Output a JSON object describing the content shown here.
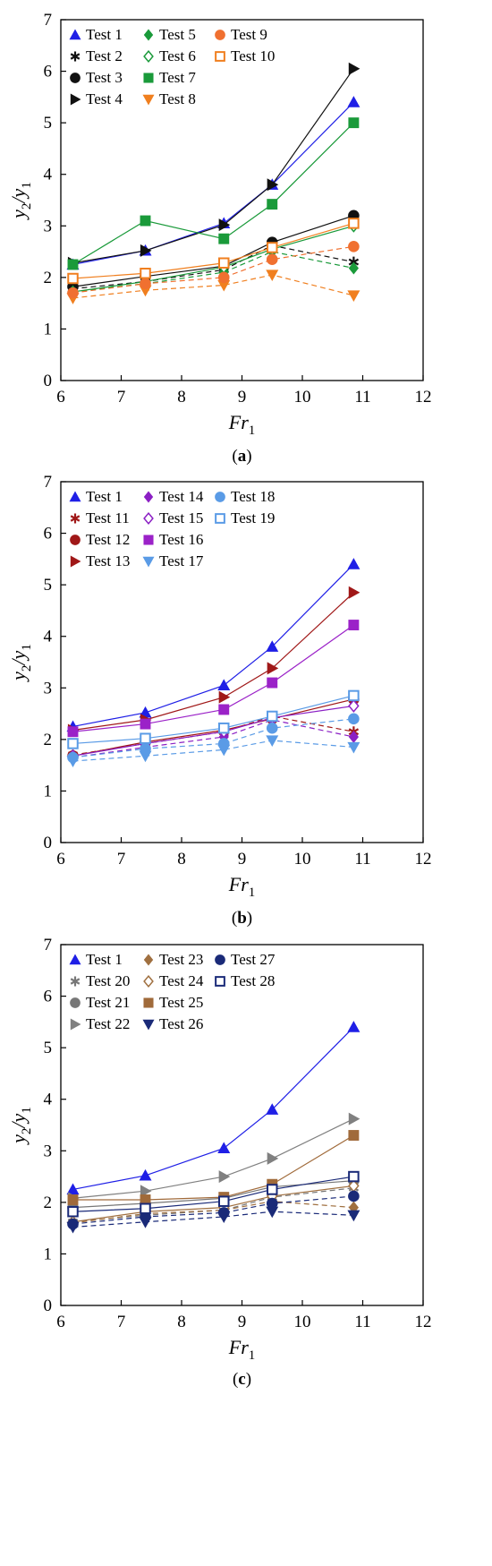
{
  "charts": [
    {
      "caption": "(a)",
      "xlabel": "Fr",
      "xlabel_sub": "1",
      "ylabel_a": "y",
      "ylabel_a_sub": "2",
      "ylabel_b": "/y",
      "ylabel_b_sub": "1",
      "xlim": [
        6,
        12
      ],
      "ylim": [
        0,
        7
      ],
      "xticks": [
        "6",
        "7",
        "8",
        "9",
        "10",
        "11",
        "12"
      ],
      "yticks": [
        "0",
        "1",
        "2",
        "3",
        "4",
        "5",
        "6",
        "7"
      ],
      "legend_placement": "top-left",
      "legend_columns": 3
    },
    {
      "caption": "(b)",
      "xlabel": "Fr",
      "xlabel_sub": "1",
      "ylabel_a": "y",
      "ylabel_a_sub": "2",
      "ylabel_b": "/y",
      "ylabel_b_sub": "1",
      "xlim": [
        6,
        12
      ],
      "ylim": [
        0,
        7
      ],
      "xticks": [
        "6",
        "7",
        "8",
        "9",
        "10",
        "11",
        "12"
      ],
      "yticks": [
        "0",
        "1",
        "2",
        "3",
        "4",
        "5",
        "6",
        "7"
      ],
      "legend_placement": "top-left",
      "legend_columns": 3
    },
    {
      "caption": "(c)",
      "xlabel": "Fr",
      "xlabel_sub": "1",
      "ylabel_a": "y",
      "ylabel_a_sub": "2",
      "ylabel_b": "/y",
      "ylabel_b_sub": "1",
      "xlim": [
        6,
        12
      ],
      "ylim": [
        0,
        7
      ],
      "xticks": [
        "6",
        "7",
        "8",
        "9",
        "10",
        "11",
        "12"
      ],
      "yticks": [
        "0",
        "1",
        "2",
        "3",
        "4",
        "5",
        "6",
        "7"
      ],
      "legend_placement": "top-left",
      "legend_columns": 3
    }
  ],
  "chart_data": [
    {
      "type": "line",
      "x": [
        6.2,
        7.4,
        8.7,
        9.5,
        10.85
      ],
      "series": [
        {
          "name": "Test 1",
          "values": [
            2.25,
            2.52,
            3.05,
            3.8,
            5.4
          ],
          "color": "#1f1fe6",
          "marker": "triangle-up",
          "dash": false
        },
        {
          "name": "Test 2",
          "values": [
            1.78,
            1.92,
            2.15,
            2.62,
            2.3
          ],
          "color": "#111111",
          "marker": "star",
          "dash": true
        },
        {
          "name": "Test 3",
          "values": [
            1.82,
            2.02,
            2.22,
            2.68,
            3.2
          ],
          "color": "#111111",
          "marker": "circle",
          "dash": false
        },
        {
          "name": "Test 4",
          "values": [
            2.28,
            2.52,
            3.02,
            3.8,
            6.05
          ],
          "color": "#111111",
          "marker": "triangle-right",
          "dash": false
        },
        {
          "name": "Test 5",
          "values": [
            1.72,
            1.88,
            2.1,
            2.5,
            2.18
          ],
          "color": "#1a9a3a",
          "marker": "diamond",
          "dash": true
        },
        {
          "name": "Test 6",
          "values": [
            1.72,
            1.92,
            2.2,
            2.55,
            3.0
          ],
          "color": "#1a9a3a",
          "marker": "diamond-open",
          "dash": false
        },
        {
          "name": "Test 7",
          "values": [
            2.25,
            3.1,
            2.75,
            3.42,
            5.0
          ],
          "color": "#1a9a3a",
          "marker": "square",
          "dash": false
        },
        {
          "name": "Test 8",
          "values": [
            1.6,
            1.75,
            1.85,
            2.05,
            1.65
          ],
          "color": "#f07f1f",
          "marker": "triangle-down",
          "dash": true
        },
        {
          "name": "Test 9",
          "values": [
            1.7,
            1.88,
            2.0,
            2.35,
            2.6
          ],
          "color": "#f07030",
          "marker": "circle",
          "dash": true
        },
        {
          "name": "Test 10",
          "values": [
            1.98,
            2.08,
            2.28,
            2.58,
            3.05
          ],
          "color": "#f07f1f",
          "marker": "square-open",
          "dash": false
        }
      ]
    },
    {
      "type": "line",
      "x": [
        6.2,
        7.4,
        8.7,
        9.5,
        10.85
      ],
      "series": [
        {
          "name": "Test 1",
          "values": [
            2.25,
            2.52,
            3.05,
            3.8,
            5.4
          ],
          "color": "#1f1fe6",
          "marker": "triangle-up",
          "dash": false
        },
        {
          "name": "Test 11",
          "values": [
            1.7,
            1.92,
            2.15,
            2.45,
            2.15
          ],
          "color": "#a01818",
          "marker": "star",
          "dash": true
        },
        {
          "name": "Test 12",
          "values": [
            1.68,
            1.95,
            2.18,
            2.4,
            2.78
          ],
          "color": "#a01818",
          "marker": "circle",
          "dash": false
        },
        {
          "name": "Test 13",
          "values": [
            2.18,
            2.38,
            2.82,
            3.38,
            4.85
          ],
          "color": "#a01818",
          "marker": "triangle-right",
          "dash": false
        },
        {
          "name": "Test 14",
          "values": [
            1.65,
            1.85,
            2.05,
            2.38,
            2.05
          ],
          "color": "#8b1fc4",
          "marker": "diamond",
          "dash": true
        },
        {
          "name": "Test 15",
          "values": [
            1.68,
            1.92,
            2.15,
            2.42,
            2.65
          ],
          "color": "#8b1fc4",
          "marker": "diamond-open",
          "dash": false
        },
        {
          "name": "Test 16",
          "values": [
            2.15,
            2.3,
            2.58,
            3.1,
            4.22
          ],
          "color": "#9b22c8",
          "marker": "square",
          "dash": false
        },
        {
          "name": "Test 17",
          "values": [
            1.58,
            1.68,
            1.8,
            1.98,
            1.85
          ],
          "color": "#5a9be6",
          "marker": "triangle-down",
          "dash": true
        },
        {
          "name": "Test 18",
          "values": [
            1.65,
            1.82,
            1.92,
            2.22,
            2.4
          ],
          "color": "#5a9be6",
          "marker": "circle",
          "dash": true
        },
        {
          "name": "Test 19",
          "values": [
            1.92,
            2.02,
            2.22,
            2.45,
            2.85
          ],
          "color": "#5a9be6",
          "marker": "square-open",
          "dash": false
        }
      ]
    },
    {
      "type": "line",
      "x": [
        6.2,
        7.4,
        8.7,
        9.5,
        10.85
      ],
      "series": [
        {
          "name": "Test 1",
          "values": [
            2.25,
            2.52,
            3.05,
            3.8,
            5.4
          ],
          "color": "#1f1fe6",
          "marker": "triangle-up",
          "dash": false
        },
        {
          "name": "Test 20",
          "values": [
            1.62,
            1.75,
            1.85,
            2.1,
            2.28
          ],
          "color": "#777777",
          "marker": "star",
          "dash": true
        },
        {
          "name": "Test 21",
          "values": [
            1.9,
            1.98,
            2.08,
            2.3,
            2.42
          ],
          "color": "#777777",
          "marker": "circle",
          "dash": false
        },
        {
          "name": "Test 22",
          "values": [
            2.08,
            2.22,
            2.5,
            2.85,
            3.62
          ],
          "color": "#808080",
          "marker": "triangle-right",
          "dash": false
        },
        {
          "name": "Test 23",
          "values": [
            1.6,
            1.78,
            1.85,
            2.02,
            1.9
          ],
          "color": "#a07040",
          "marker": "diamond",
          "dash": true
        },
        {
          "name": "Test 24",
          "values": [
            1.62,
            1.82,
            1.9,
            2.12,
            2.32
          ],
          "color": "#a07040",
          "marker": "diamond-open",
          "dash": false
        },
        {
          "name": "Test 25",
          "values": [
            2.05,
            2.05,
            2.1,
            2.35,
            3.3
          ],
          "color": "#a06a3a",
          "marker": "square",
          "dash": false
        },
        {
          "name": "Test 26",
          "values": [
            1.52,
            1.62,
            1.72,
            1.82,
            1.75
          ],
          "color": "#1a2a78",
          "marker": "triangle-down",
          "dash": true
        },
        {
          "name": "Test 27",
          "values": [
            1.58,
            1.72,
            1.8,
            1.98,
            2.12
          ],
          "color": "#1a2a78",
          "marker": "circle",
          "dash": true
        },
        {
          "name": "Test 28",
          "values": [
            1.82,
            1.88,
            2.02,
            2.25,
            2.5
          ],
          "color": "#1a2a78",
          "marker": "square-open",
          "dash": false
        }
      ]
    }
  ]
}
